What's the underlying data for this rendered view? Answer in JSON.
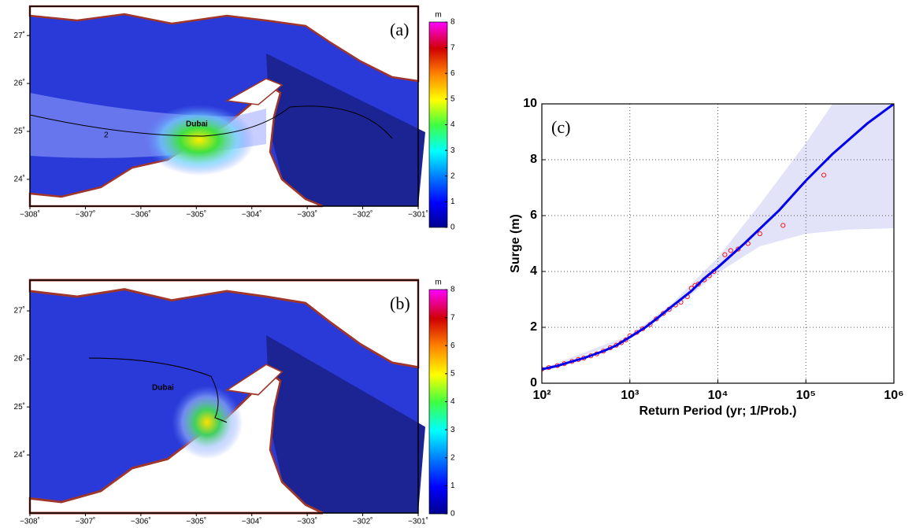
{
  "chart_data": [
    {
      "type": "map",
      "panel_label": "(a)",
      "place_label": "Dubai",
      "contour_label": "2",
      "xlim": [
        -308,
        -301
      ],
      "ylim": [
        23.44,
        27.61
      ],
      "xticks": [
        {
          "value": -308,
          "label": "−308˚"
        },
        {
          "value": -307,
          "label": "−307˚"
        },
        {
          "value": -306,
          "label": "−306˚"
        },
        {
          "value": -305,
          "label": "−305˚"
        },
        {
          "value": -304,
          "label": "−304˚"
        },
        {
          "value": -303,
          "label": "−303˚"
        },
        {
          "value": -302,
          "label": "−302˚"
        },
        {
          "value": -301,
          "label": "−301˚"
        }
      ],
      "yticks": [
        {
          "value": 24,
          "label": "24˚"
        },
        {
          "value": 25,
          "label": "25˚"
        },
        {
          "value": 26,
          "label": "26˚"
        },
        {
          "value": 27,
          "label": "27˚"
        }
      ],
      "colorbar": {
        "unit": "m",
        "lim": [
          0,
          8
        ],
        "ticks": [
          0,
          1,
          2,
          3,
          4,
          5,
          6,
          7,
          8
        ]
      }
    },
    {
      "type": "map",
      "panel_label": "(b)",
      "place_label": "Dubai",
      "xlim": [
        -308,
        -301
      ],
      "ylim": [
        22.79,
        27.64
      ],
      "xticks": [
        {
          "value": -308,
          "label": "−308˚"
        },
        {
          "value": -307,
          "label": "−307˚"
        },
        {
          "value": -306,
          "label": "−306˚"
        },
        {
          "value": -305,
          "label": "−305˚"
        },
        {
          "value": -304,
          "label": "−304˚"
        },
        {
          "value": -303,
          "label": "−303˚"
        },
        {
          "value": -302,
          "label": "−302˚"
        },
        {
          "value": -301,
          "label": "−301˚"
        }
      ],
      "yticks": [
        {
          "value": 24,
          "label": "24˚"
        },
        {
          "value": 25,
          "label": "25˚"
        },
        {
          "value": 26,
          "label": "26˚"
        },
        {
          "value": 27,
          "label": "27˚"
        }
      ],
      "colorbar": {
        "unit": "m",
        "lim": [
          0,
          8
        ],
        "ticks": [
          0,
          1,
          2,
          3,
          4,
          5,
          6,
          7,
          8
        ]
      }
    },
    {
      "type": "line",
      "panel_label": "(c)",
      "x_label": "Return Period (yr; 1/Prob.)",
      "y_label": "Surge (m)",
      "log_x": true,
      "grid": true,
      "xlim": [
        100,
        1000000
      ],
      "ylim": [
        0,
        10
      ],
      "xticks": [
        {
          "value": 100,
          "label": "10²"
        },
        {
          "value": 1000,
          "label": "10³"
        },
        {
          "value": 10000,
          "label": "10⁴"
        },
        {
          "value": 100000,
          "label": "10⁵"
        },
        {
          "value": 1000000,
          "label": "10⁶"
        }
      ],
      "yticks": [
        0,
        2,
        4,
        6,
        8,
        10
      ],
      "band": {
        "color": "#e2e2f8",
        "x": [
          100,
          1000,
          3000,
          10000,
          30000,
          100000,
          300000,
          1000000
        ],
        "upper": [
          0.52,
          1.72,
          2.85,
          4.5,
          6.4,
          8.6,
          10.8,
          14
        ],
        "lower": [
          0.46,
          1.58,
          2.6,
          3.95,
          4.9,
          5.35,
          5.5,
          5.55
        ]
      },
      "fit": {
        "color": "#0000ee",
        "x": [
          100,
          150,
          200,
          300,
          500,
          700,
          1000,
          1500,
          2000,
          3000,
          5000,
          7000,
          10000,
          20000,
          50000,
          100000,
          200000,
          500000,
          1000000
        ],
        "values": [
          0.5,
          0.62,
          0.74,
          0.9,
          1.15,
          1.35,
          1.65,
          2.0,
          2.3,
          2.75,
          3.3,
          3.75,
          4.15,
          5.0,
          6.2,
          7.25,
          8.2,
          9.3,
          10.0
        ]
      },
      "points": {
        "color": "#ff0000",
        "x": [
          100,
          120,
          150,
          180,
          220,
          260,
          300,
          360,
          420,
          500,
          600,
          700,
          800,
          900,
          1000,
          1200,
          1400,
          1700,
          2000,
          2400,
          2800,
          3300,
          3800,
          4500,
          5000,
          5500,
          6000,
          7000,
          8000,
          9000,
          12000,
          14000,
          17000,
          22000,
          30000,
          55000,
          160000
        ],
        "values": [
          0.5,
          0.56,
          0.63,
          0.7,
          0.78,
          0.85,
          0.9,
          0.98,
          1.05,
          1.15,
          1.27,
          1.36,
          1.45,
          1.55,
          1.7,
          1.82,
          1.95,
          2.1,
          2.3,
          2.5,
          2.65,
          2.8,
          2.9,
          3.1,
          3.4,
          3.5,
          3.55,
          3.7,
          3.85,
          4.0,
          4.6,
          4.75,
          4.8,
          5.0,
          5.35,
          5.65,
          7.45
        ]
      }
    }
  ]
}
